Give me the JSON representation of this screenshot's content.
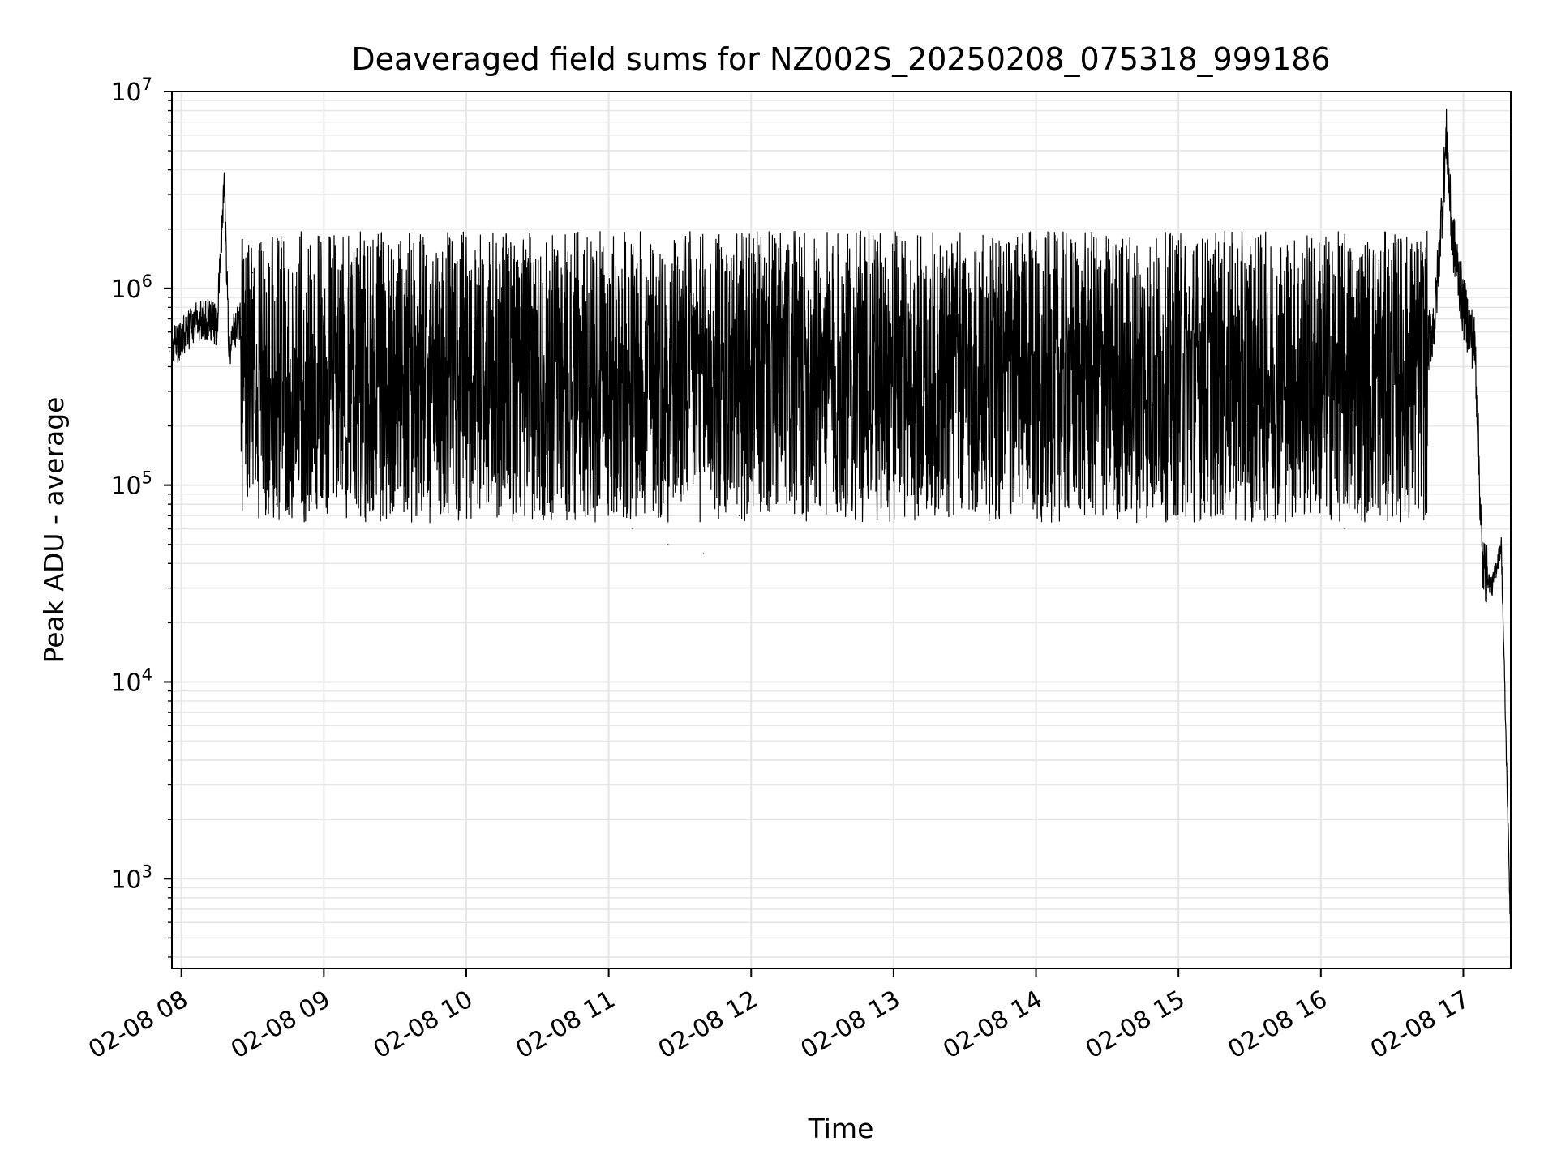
{
  "chart_data": {
    "type": "line",
    "title": "Deaveraged field sums for NZ002S_20250208_075318_999186",
    "xlabel": "Time",
    "ylabel": "Peak ADU - average",
    "yscale": "log",
    "ylim": [
      350,
      10000000
    ],
    "xlim": [
      "02-08 07:56",
      "02-08 17:20"
    ],
    "grid": true,
    "series_color": "#000000",
    "grid_color": "#e6e6e6",
    "x_ticks": [
      {
        "value": "02-08 08:00",
        "label": "02-08 08"
      },
      {
        "value": "02-08 09:00",
        "label": "02-08 09"
      },
      {
        "value": "02-08 10:00",
        "label": "02-08 10"
      },
      {
        "value": "02-08 11:00",
        "label": "02-08 11"
      },
      {
        "value": "02-08 12:00",
        "label": "02-08 12"
      },
      {
        "value": "02-08 13:00",
        "label": "02-08 13"
      },
      {
        "value": "02-08 14:00",
        "label": "02-08 14"
      },
      {
        "value": "02-08 15:00",
        "label": "02-08 15"
      },
      {
        "value": "02-08 16:00",
        "label": "02-08 16"
      },
      {
        "value": "02-08 17:00",
        "label": "02-08 17"
      }
    ],
    "y_ticks": [
      {
        "value": 1000,
        "base": "10",
        "exp": "3"
      },
      {
        "value": 10000,
        "base": "10",
        "exp": "4"
      },
      {
        "value": 100000,
        "base": "10",
        "exp": "5"
      },
      {
        "value": 1000000,
        "base": "10",
        "exp": "6"
      },
      {
        "value": 10000000,
        "base": "10",
        "exp": "7"
      }
    ],
    "series": [
      {
        "x": [
          "02-08 07:55",
          "02-08 08:05",
          "02-08 08:10",
          "02-08 08:15",
          "02-08 08:18",
          "02-08 08:20",
          "02-08 08:22",
          "02-08 08:25",
          "02-08 08:30",
          "02-08 08:40",
          "02-08 08:50",
          "02-08 09:00",
          "02-08 09:15",
          "02-08 09:30",
          "02-08 09:45",
          "02-08 10:00",
          "02-08 10:15",
          "02-08 10:30",
          "02-08 10:45",
          "02-08 10:55",
          "02-08 11:10",
          "02-08 11:25",
          "02-08 11:40",
          "02-08 11:55",
          "02-08 12:10",
          "02-08 12:25",
          "02-08 12:40",
          "02-08 12:55",
          "02-08 13:10",
          "02-08 13:25",
          "02-08 13:40",
          "02-08 13:55",
          "02-08 14:10",
          "02-08 14:25",
          "02-08 14:40",
          "02-08 14:55",
          "02-08 15:10",
          "02-08 15:25",
          "02-08 15:40",
          "02-08 15:55",
          "02-08 16:10",
          "02-08 16:25",
          "02-08 16:40",
          "02-08 16:48",
          "02-08 16:53",
          "02-08 16:55",
          "02-08 17:00",
          "02-08 17:05",
          "02-08 17:08",
          "02-08 17:12",
          "02-08 17:16",
          "02-08 17:20"
        ],
        "y": [
          480000,
          650000,
          700000,
          650000,
          3500000,
          500000,
          600000,
          700000,
          1200000,
          80000,
          1400000,
          90000,
          1200000,
          100000,
          900000,
          150000,
          700000,
          120000,
          500000,
          100000,
          60000,
          50000,
          45000,
          70000,
          100000,
          400000,
          800000,
          1000000,
          200000,
          800000,
          100000,
          1000000,
          150000,
          1000000,
          100000,
          900000,
          80000,
          800000,
          70000,
          900000,
          60000,
          200000,
          300000,
          700000,
          6000000,
          2000000,
          800000,
          500000,
          40000,
          30000,
          50000,
          500
        ]
      }
    ]
  }
}
